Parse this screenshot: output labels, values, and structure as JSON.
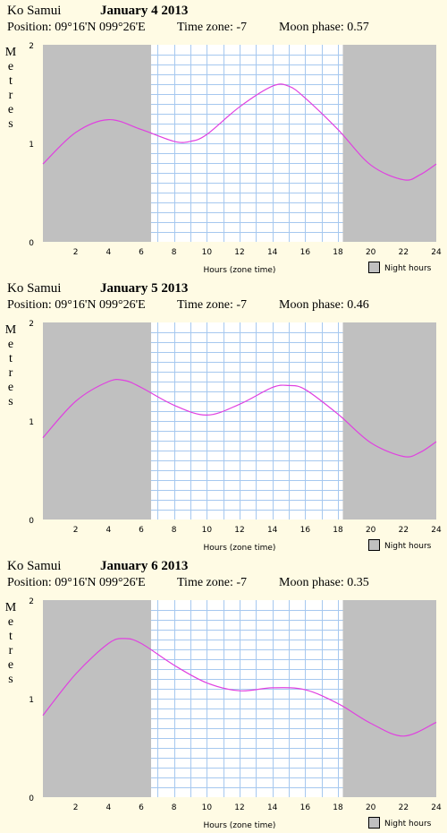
{
  "colors": {
    "background": "#fffbe4",
    "night": "#c0c0c0",
    "day": "#ffffff",
    "grid": "#a6c8ef",
    "curve": "#e040e0"
  },
  "legend_label": "Night hours",
  "panels": [
    {
      "location": "Ko Samui",
      "date": "January 4 2013",
      "position": "Position: 09°16'N 099°26'E",
      "timezone": "Time zone: -7",
      "moon": "Moon phase: 0.57"
    },
    {
      "location": "Ko Samui",
      "date": "January 5 2013",
      "position": "Position: 09°16'N 099°26'E",
      "timezone": "Time zone: -7",
      "moon": "Moon phase: 0.46"
    },
    {
      "location": "Ko Samui",
      "date": "January 6 2013",
      "position": "Position: 09°16'N 099°26'E",
      "timezone": "Time zone: -7",
      "moon": "Moon phase: 0.35"
    }
  ],
  "chart_data": [
    {
      "type": "line",
      "xlabel": "Hours (zone time)",
      "ylabel": "Metres",
      "xlim": [
        0,
        24
      ],
      "ylim": [
        0,
        2
      ],
      "x_ticks": [
        2,
        4,
        6,
        8,
        10,
        12,
        14,
        16,
        18,
        20,
        22,
        24
      ],
      "y_ticks": [
        0,
        1,
        2
      ],
      "night_before": 6.6,
      "night_after": 18.3,
      "grid": true,
      "legend": "bottom-right",
      "x": [
        0,
        2,
        4,
        6,
        8,
        9,
        10,
        12,
        14,
        15,
        16,
        18,
        20,
        22,
        23,
        24
      ],
      "y": [
        0.79,
        1.11,
        1.24,
        1.14,
        1.02,
        1.02,
        1.09,
        1.37,
        1.58,
        1.58,
        1.46,
        1.14,
        0.78,
        0.63,
        0.68,
        0.79
      ]
    },
    {
      "type": "line",
      "xlabel": "Hours (zone time)",
      "ylabel": "Metres",
      "xlim": [
        0,
        24
      ],
      "ylim": [
        0,
        2
      ],
      "x_ticks": [
        2,
        4,
        6,
        8,
        10,
        12,
        14,
        16,
        18,
        20,
        22,
        24
      ],
      "y_ticks": [
        0,
        1,
        2
      ],
      "night_before": 6.6,
      "night_after": 18.3,
      "grid": true,
      "legend": "bottom-right",
      "x": [
        0,
        2,
        4,
        5,
        6,
        8,
        10,
        12,
        14,
        15,
        16,
        18,
        20,
        22,
        23,
        24
      ],
      "y": [
        0.83,
        1.2,
        1.4,
        1.41,
        1.34,
        1.16,
        1.06,
        1.17,
        1.34,
        1.36,
        1.32,
        1.07,
        0.78,
        0.64,
        0.68,
        0.79
      ]
    },
    {
      "type": "line",
      "xlabel": "Hours (zone time)",
      "ylabel": "Metres",
      "xlim": [
        0,
        24
      ],
      "ylim": [
        0,
        2
      ],
      "x_ticks": [
        2,
        4,
        6,
        8,
        10,
        12,
        14,
        16,
        18,
        20,
        22,
        24
      ],
      "y_ticks": [
        0,
        1,
        2
      ],
      "night_before": 6.6,
      "night_after": 18.3,
      "grid": true,
      "legend": "bottom-right",
      "x": [
        0,
        2,
        4,
        5,
        6,
        8,
        10,
        12,
        14,
        16,
        18,
        20,
        22,
        24
      ],
      "y": [
        0.83,
        1.25,
        1.56,
        1.61,
        1.56,
        1.34,
        1.16,
        1.08,
        1.11,
        1.09,
        0.95,
        0.75,
        0.62,
        0.76
      ]
    }
  ]
}
